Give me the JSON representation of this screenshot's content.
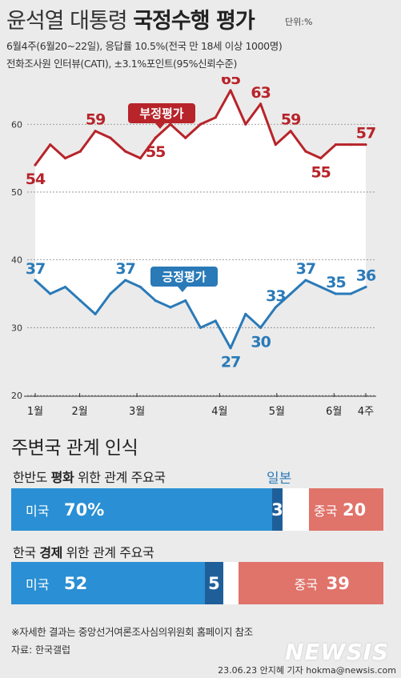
{
  "header": {
    "title_regular": "윤석열 대통령",
    "title_bold": "국정수행 평가",
    "unit": "단위:%",
    "subtitle_1": "6월4주(6월20~22일), 응답률 10.5%(전국 만 18세 이상 1000명)",
    "subtitle_2": "전화조사원 인터뷰(CATI), ±3.1%포인트(95%신뢰수준)"
  },
  "chart_data": {
    "type": "line",
    "ylim": [
      20,
      67
    ],
    "yticks": [
      20,
      30,
      40,
      50,
      60
    ],
    "grid": true,
    "month_labels": [
      {
        "label": "1월",
        "index": 0
      },
      {
        "label": "2월",
        "index": 3.5
      },
      {
        "label": "3월",
        "index": 8
      },
      {
        "label": "4월",
        "index": 14.5
      },
      {
        "label": "5월",
        "index": 19
      },
      {
        "label": "6월",
        "index": 23.5
      },
      {
        "label": "4주",
        "index": 26
      }
    ],
    "series": [
      {
        "name": "부정평가",
        "color": "#b7242a",
        "values": [
          54,
          57,
          55,
          56,
          59,
          58,
          56,
          55,
          58,
          60,
          58,
          60,
          61,
          65,
          60,
          63,
          57,
          59,
          56,
          55,
          57,
          57,
          57
        ],
        "labels": {
          "0": "54",
          "4": "59",
          "8": "55",
          "13": "65",
          "15": "63",
          "17": "59",
          "19": "55",
          "22": "57"
        }
      },
      {
        "name": "긍정평가",
        "color": "#2a7ab8",
        "values": [
          37,
          35,
          36,
          34,
          32,
          35,
          37,
          36,
          34,
          33,
          34,
          30,
          31,
          27,
          32,
          30,
          33,
          35,
          37,
          36,
          35,
          35,
          36
        ],
        "labels": {
          "0": "37",
          "6": "37",
          "13": "27",
          "15": "30",
          "16": "33",
          "18": "37",
          "20": "35",
          "22": "36"
        }
      }
    ]
  },
  "relations": {
    "title": "주변국 관계 인식",
    "legend_japan": "일본",
    "bars": [
      {
        "label_pre": "한반도",
        "label_bold": "평화",
        "label_post": "위한 관계 주요국",
        "segments": [
          {
            "name": "미국",
            "value": 70,
            "text": "미국",
            "value_text": "70%",
            "color": "#2a8fd4"
          },
          {
            "name": "일본",
            "value": 3,
            "text": "",
            "value_text": "3",
            "color": "#1f5f99"
          },
          {
            "name": "기타",
            "value": 7,
            "text": "",
            "value_text": "",
            "color": "#ffffff"
          },
          {
            "name": "중국",
            "value": 20,
            "text": "중국",
            "value_text": "20",
            "color": "#e0736a"
          }
        ]
      },
      {
        "label_pre": "한국",
        "label_bold": "경제",
        "label_post": "위한 관계 주요국",
        "segments": [
          {
            "name": "미국",
            "value": 52,
            "text": "미국",
            "value_text": "52",
            "color": "#2a8fd4"
          },
          {
            "name": "일본",
            "value": 5,
            "text": "",
            "value_text": "5",
            "color": "#1f5f99"
          },
          {
            "name": "기타",
            "value": 4,
            "text": "",
            "value_text": "",
            "color": "#ffffff"
          },
          {
            "name": "중국",
            "value": 39,
            "text": "중국",
            "value_text": "39",
            "color": "#e0736a"
          }
        ]
      }
    ]
  },
  "footer": {
    "note": "※자세한 결과는 중앙선거여론조사심의위원회 홈페이지 참조",
    "source": "자료: 한국갤럽",
    "credit": "23.06.23 안지혜 기자 hokma@newsis.com",
    "logo": "NEWSIS"
  }
}
